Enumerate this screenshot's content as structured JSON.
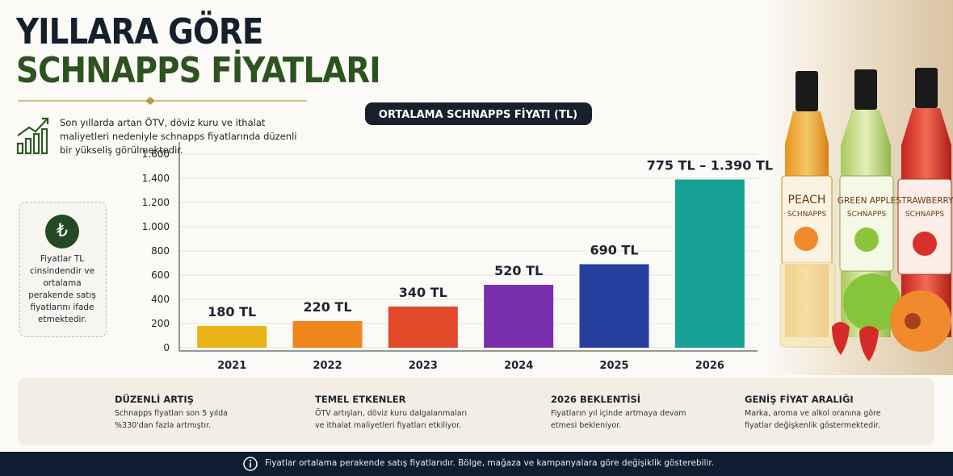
{
  "header": {
    "title_line1": "YILLARA GÖRE",
    "title_line2": "SCHNAPPS FİYATLARI"
  },
  "intro": "Son yıllarda artan ÖTV, döviz kuru ve ithalat maliyetleri nedeniyle schnapps fiyatlarında düzenli bir yükseliş görülmektedir.",
  "note": {
    "icon": "₺",
    "text": "Fiyatlar TL cinsindendir ve ortalama perakende satış fiyatlarını ifade etmektedir."
  },
  "chart_data": {
    "type": "bar",
    "title": "ORTALAMA SCHNAPPS FİYATI (TL)",
    "categories": [
      "2021",
      "2022",
      "2023",
      "2024",
      "2025",
      "2026"
    ],
    "values": [
      180,
      220,
      340,
      520,
      690,
      1390
    ],
    "value_labels": [
      "180 TL",
      "220 TL",
      "340 TL",
      "520 TL",
      "690 TL",
      "775 TL – 1.390 TL"
    ],
    "colors": [
      "#e8b316",
      "#f0861d",
      "#e2492a",
      "#7a2fae",
      "#263f9e",
      "#17a197"
    ],
    "ylim": [
      0,
      1700
    ],
    "yticks": [
      0,
      200,
      400,
      600,
      800,
      {
        "value": 1000,
        "label": "1.000"
      },
      {
        "value": 1200,
        "label": "1.200"
      },
      {
        "value": 1400,
        "label": "1.400"
      },
      {
        "value": 1600,
        "label": "1.600"
      }
    ],
    "grid": true
  },
  "products": [
    {
      "name": "PEACH",
      "kind": "SCHNAPPS"
    },
    {
      "name": "GREEN APPLE",
      "kind": "SCHNAPPS"
    },
    {
      "name": "STRAWBERRY",
      "kind": "SCHNAPPS"
    }
  ],
  "cards": [
    {
      "title": "DÜZENLİ ARTIŞ",
      "text": "Schnapps fiyatları son 5 yılda %330'dan fazla artmıştır."
    },
    {
      "title": "TEMEL ETKENLER",
      "text": "ÖTV artışları, döviz kuru dalgalanmaları ve ithalat maliyetleri fiyatları etkiliyor."
    },
    {
      "title": "2026 BEKLENTİSİ",
      "text": "Fiyatların yıl içinde artmaya devam etmesi bekleniyor."
    },
    {
      "title": "GENİŞ FİYAT ARALIĞI",
      "text": "Marka, aroma ve alkol oranına göre fiyatlar değişkenlik göstermektedir."
    }
  ],
  "footer": "Fiyatlar ortalama perakende satış fiyatlarıdır. Bölge, mağaza ve kampanyalara göre değişiklik gösterebilir."
}
